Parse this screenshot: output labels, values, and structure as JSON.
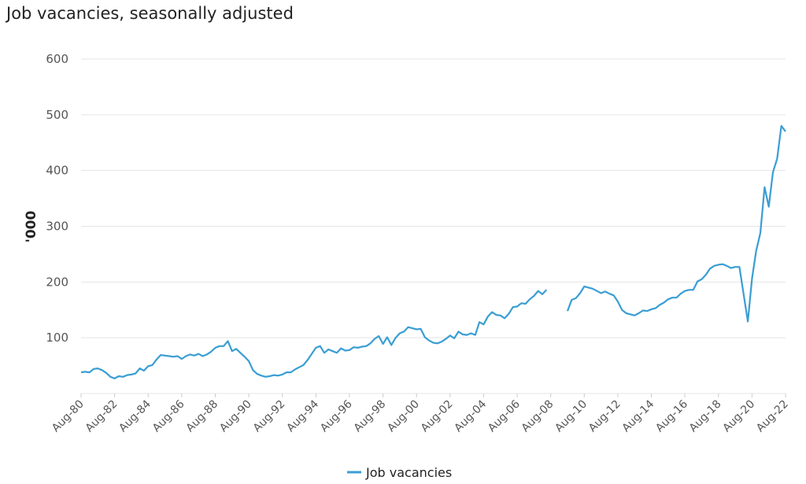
{
  "chart_data": {
    "type": "line",
    "title": "Job vacancies, seasonally adjusted",
    "ylabel": "'000",
    "xlabel": "",
    "ylim": [
      0,
      600
    ],
    "yticks": [
      100,
      200,
      300,
      400,
      500,
      600
    ],
    "grid": true,
    "legend_position": "bottom-center",
    "x_tick_labels": [
      "Aug-80",
      "Aug-82",
      "Aug-84",
      "Aug-86",
      "Aug-88",
      "Aug-90",
      "Aug-92",
      "Aug-94",
      "Aug-96",
      "Aug-98",
      "Aug-00",
      "Aug-02",
      "Aug-04",
      "Aug-06",
      "Aug-08",
      "Aug-10",
      "Aug-12",
      "Aug-14",
      "Aug-16",
      "Aug-18",
      "Aug-20",
      "Aug-22"
    ],
    "series": [
      {
        "name": "Job vacancies",
        "color": "#3a9ed3",
        "segments": [
          [
            [
              "1980-08",
              38
            ],
            [
              "1980-11",
              39
            ],
            [
              "1981-02",
              38
            ],
            [
              "1981-05",
              44
            ],
            [
              "1981-08",
              45
            ],
            [
              "1981-11",
              42
            ],
            [
              "1982-02",
              37
            ],
            [
              "1982-05",
              30
            ],
            [
              "1982-08",
              27
            ],
            [
              "1982-11",
              31
            ],
            [
              "1983-02",
              30
            ],
            [
              "1983-05",
              33
            ],
            [
              "1983-08",
              34
            ],
            [
              "1983-11",
              36
            ],
            [
              "1984-02",
              45
            ],
            [
              "1984-05",
              41
            ],
            [
              "1984-08",
              49
            ],
            [
              "1984-11",
              51
            ],
            [
              "1985-02",
              61
            ],
            [
              "1985-05",
              69
            ],
            [
              "1985-08",
              68
            ],
            [
              "1985-11",
              67
            ],
            [
              "1986-02",
              66
            ],
            [
              "1986-05",
              67
            ],
            [
              "1986-08",
              62
            ],
            [
              "1986-11",
              67
            ],
            [
              "1987-02",
              70
            ],
            [
              "1987-05",
              68
            ],
            [
              "1987-08",
              71
            ],
            [
              "1987-11",
              67
            ],
            [
              "1988-02",
              70
            ],
            [
              "1988-05",
              75
            ],
            [
              "1988-08",
              82
            ],
            [
              "1988-11",
              85
            ],
            [
              "1989-02",
              85
            ],
            [
              "1989-05",
              94
            ],
            [
              "1989-08",
              76
            ],
            [
              "1989-11",
              80
            ],
            [
              "1990-02",
              73
            ],
            [
              "1990-05",
              66
            ],
            [
              "1990-08",
              58
            ],
            [
              "1990-11",
              42
            ],
            [
              "1991-02",
              35
            ],
            [
              "1991-05",
              32
            ],
            [
              "1991-08",
              30
            ],
            [
              "1991-11",
              31
            ],
            [
              "1992-02",
              33
            ],
            [
              "1992-05",
              32
            ],
            [
              "1992-08",
              34
            ],
            [
              "1992-11",
              38
            ],
            [
              "1993-02",
              38
            ],
            [
              "1993-05",
              43
            ],
            [
              "1993-08",
              47
            ],
            [
              "1993-11",
              51
            ],
            [
              "1994-02",
              60
            ],
            [
              "1994-05",
              71
            ],
            [
              "1994-08",
              82
            ],
            [
              "1994-11",
              85
            ],
            [
              "1995-02",
              73
            ],
            [
              "1995-05",
              79
            ],
            [
              "1995-08",
              76
            ],
            [
              "1995-11",
              73
            ],
            [
              "1996-02",
              81
            ],
            [
              "1996-05",
              77
            ],
            [
              "1996-08",
              78
            ],
            [
              "1996-11",
              83
            ],
            [
              "1997-02",
              82
            ],
            [
              "1997-05",
              84
            ],
            [
              "1997-08",
              85
            ],
            [
              "1997-11",
              90
            ],
            [
              "1998-02",
              98
            ],
            [
              "1998-05",
              103
            ],
            [
              "1998-08",
              89
            ],
            [
              "1998-11",
              101
            ],
            [
              "1999-02",
              87
            ],
            [
              "1999-05",
              100
            ],
            [
              "1999-08",
              108
            ],
            [
              "1999-11",
              111
            ],
            [
              "2000-02",
              119
            ],
            [
              "2000-05",
              117
            ],
            [
              "2000-08",
              115
            ],
            [
              "2000-11",
              116
            ],
            [
              "2001-02",
              101
            ],
            [
              "2001-05",
              95
            ],
            [
              "2001-08",
              91
            ],
            [
              "2001-11",
              90
            ],
            [
              "2002-02",
              93
            ],
            [
              "2002-05",
              98
            ],
            [
              "2002-08",
              104
            ],
            [
              "2002-11",
              99
            ],
            [
              "2003-02",
              111
            ],
            [
              "2003-05",
              106
            ],
            [
              "2003-08",
              105
            ],
            [
              "2003-11",
              108
            ],
            [
              "2004-02",
              105
            ],
            [
              "2004-05",
              128
            ],
            [
              "2004-08",
              124
            ],
            [
              "2004-11",
              138
            ],
            [
              "2005-02",
              146
            ],
            [
              "2005-05",
              141
            ],
            [
              "2005-08",
              140
            ],
            [
              "2005-11",
              135
            ],
            [
              "2006-02",
              143
            ],
            [
              "2006-05",
              155
            ],
            [
              "2006-08",
              156
            ],
            [
              "2006-11",
              162
            ],
            [
              "2007-02",
              161
            ],
            [
              "2007-05",
              169
            ],
            [
              "2007-08",
              175
            ],
            [
              "2007-11",
              184
            ],
            [
              "2008-02",
              178
            ],
            [
              "2008-05",
              186
            ]
          ],
          [
            [
              "2009-08",
              148
            ],
            [
              "2009-11",
              168
            ],
            [
              "2010-02",
              171
            ],
            [
              "2010-05",
              180
            ],
            [
              "2010-08",
              192
            ],
            [
              "2010-11",
              190
            ],
            [
              "2011-02",
              188
            ],
            [
              "2011-05",
              184
            ],
            [
              "2011-08",
              180
            ],
            [
              "2011-11",
              183
            ],
            [
              "2012-02",
              179
            ],
            [
              "2012-05",
              176
            ],
            [
              "2012-08",
              165
            ],
            [
              "2012-11",
              150
            ],
            [
              "2013-02",
              144
            ],
            [
              "2013-05",
              142
            ],
            [
              "2013-08",
              140
            ],
            [
              "2013-11",
              144
            ],
            [
              "2014-02",
              149
            ],
            [
              "2014-05",
              148
            ],
            [
              "2014-08",
              151
            ],
            [
              "2014-11",
              153
            ],
            [
              "2015-02",
              159
            ],
            [
              "2015-05",
              163
            ],
            [
              "2015-08",
              169
            ],
            [
              "2015-11",
              172
            ],
            [
              "2016-02",
              172
            ],
            [
              "2016-05",
              179
            ],
            [
              "2016-08",
              184
            ],
            [
              "2016-11",
              186
            ],
            [
              "2017-02",
              186
            ],
            [
              "2017-05",
              201
            ],
            [
              "2017-08",
              205
            ],
            [
              "2017-11",
              213
            ],
            [
              "2018-02",
              224
            ],
            [
              "2018-05",
              229
            ],
            [
              "2018-08",
              231
            ],
            [
              "2018-11",
              232
            ],
            [
              "2019-02",
              229
            ],
            [
              "2019-05",
              225
            ],
            [
              "2019-08",
              227
            ],
            [
              "2019-11",
              227
            ],
            [
              "2020-05",
              129
            ],
            [
              "2020-08",
              206
            ],
            [
              "2020-11",
              256
            ],
            [
              "2021-02",
              288
            ],
            [
              "2021-05",
              370
            ],
            [
              "2021-08",
              335
            ],
            [
              "2021-11",
              397
            ],
            [
              "2022-02",
              421
            ],
            [
              "2022-05",
              480
            ],
            [
              "2022-08",
              470
            ]
          ]
        ]
      }
    ]
  }
}
